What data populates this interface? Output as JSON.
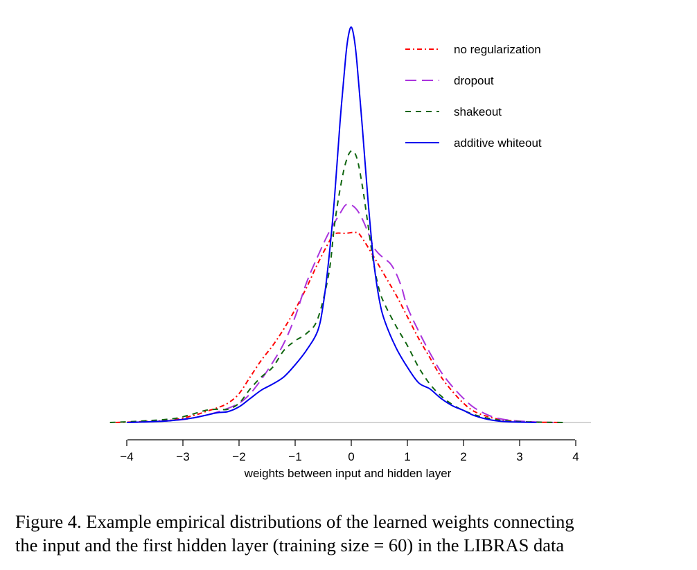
{
  "chart_data": {
    "type": "line",
    "title": "",
    "xlabel": "weights between input and hidden layer",
    "ylabel": "",
    "xlim": [
      -4.3,
      4.3
    ],
    "xticks": [
      -4,
      -3,
      -2,
      -1,
      0,
      1,
      2,
      3,
      4
    ],
    "xtick_labels": [
      "−4",
      "−3",
      "−2",
      "−1",
      "0",
      "1",
      "2",
      "3",
      "4"
    ],
    "y_axis_shown": false,
    "grid": false,
    "legend": "top-right",
    "series": [
      {
        "name": "no regularization",
        "color": "#ff0000",
        "style": "dashdot",
        "points": [
          [
            -4.2,
            0.0
          ],
          [
            -3.8,
            0.003
          ],
          [
            -3.2,
            0.01
          ],
          [
            -2.8,
            0.03
          ],
          [
            -2.6,
            0.045
          ],
          [
            -2.4,
            0.06
          ],
          [
            -2.2,
            0.08
          ],
          [
            -2.0,
            0.12
          ],
          [
            -1.8,
            0.19
          ],
          [
            -1.6,
            0.26
          ],
          [
            -1.4,
            0.32
          ],
          [
            -1.2,
            0.39
          ],
          [
            -1.0,
            0.47
          ],
          [
            -0.8,
            0.56
          ],
          [
            -0.6,
            0.66
          ],
          [
            -0.4,
            0.75
          ],
          [
            -0.3,
            0.785
          ],
          [
            -0.1,
            0.787
          ],
          [
            0.1,
            0.79
          ],
          [
            0.2,
            0.765
          ],
          [
            0.4,
            0.69
          ],
          [
            0.6,
            0.61
          ],
          [
            0.8,
            0.53
          ],
          [
            1.0,
            0.44
          ],
          [
            1.2,
            0.35
          ],
          [
            1.4,
            0.27
          ],
          [
            1.6,
            0.19
          ],
          [
            1.8,
            0.13
          ],
          [
            2.0,
            0.08
          ],
          [
            2.2,
            0.045
          ],
          [
            2.5,
            0.02
          ],
          [
            2.8,
            0.008
          ],
          [
            3.2,
            0.002
          ],
          [
            3.75,
            0.0
          ]
        ]
      },
      {
        "name": "dropout",
        "color": "#aa33dd",
        "style": "longdash",
        "points": [
          [
            -4.0,
            0.0
          ],
          [
            -3.6,
            0.003
          ],
          [
            -3.0,
            0.012
          ],
          [
            -2.6,
            0.03
          ],
          [
            -2.3,
            0.05
          ],
          [
            -2.0,
            0.08
          ],
          [
            -1.8,
            0.12
          ],
          [
            -1.6,
            0.18
          ],
          [
            -1.4,
            0.25
          ],
          [
            -1.2,
            0.33
          ],
          [
            -1.0,
            0.44
          ],
          [
            -0.8,
            0.58
          ],
          [
            -0.6,
            0.69
          ],
          [
            -0.4,
            0.79
          ],
          [
            -0.2,
            0.87
          ],
          [
            -0.1,
            0.905
          ],
          [
            0.0,
            0.905
          ],
          [
            0.1,
            0.885
          ],
          [
            0.2,
            0.845
          ],
          [
            0.3,
            0.79
          ],
          [
            0.4,
            0.73
          ],
          [
            0.5,
            0.7
          ],
          [
            0.6,
            0.68
          ],
          [
            0.7,
            0.66
          ],
          [
            0.8,
            0.62
          ],
          [
            0.9,
            0.56
          ],
          [
            1.0,
            0.48
          ],
          [
            1.2,
            0.38
          ],
          [
            1.4,
            0.29
          ],
          [
            1.6,
            0.21
          ],
          [
            1.8,
            0.15
          ],
          [
            2.0,
            0.1
          ],
          [
            2.2,
            0.06
          ],
          [
            2.5,
            0.025
          ],
          [
            2.8,
            0.01
          ],
          [
            3.2,
            0.003
          ],
          [
            3.6,
            0.0
          ]
        ]
      },
      {
        "name": "shakeout",
        "color": "#116611",
        "style": "dashed",
        "points": [
          [
            -4.3,
            0.0
          ],
          [
            -3.8,
            0.005
          ],
          [
            -3.2,
            0.015
          ],
          [
            -2.9,
            0.03
          ],
          [
            -2.6,
            0.05
          ],
          [
            -2.4,
            0.055
          ],
          [
            -2.2,
            0.055
          ],
          [
            -2.0,
            0.08
          ],
          [
            -1.8,
            0.14
          ],
          [
            -1.6,
            0.19
          ],
          [
            -1.4,
            0.23
          ],
          [
            -1.2,
            0.3
          ],
          [
            -1.0,
            0.34
          ],
          [
            -0.8,
            0.37
          ],
          [
            -0.6,
            0.43
          ],
          [
            -0.4,
            0.62
          ],
          [
            -0.3,
            0.82
          ],
          [
            -0.2,
            0.97
          ],
          [
            -0.1,
            1.08
          ],
          [
            0.0,
            1.13
          ],
          [
            0.1,
            1.1
          ],
          [
            0.2,
            0.98
          ],
          [
            0.3,
            0.82
          ],
          [
            0.4,
            0.66
          ],
          [
            0.5,
            0.55
          ],
          [
            0.6,
            0.49
          ],
          [
            0.8,
            0.4
          ],
          [
            1.0,
            0.32
          ],
          [
            1.2,
            0.23
          ],
          [
            1.4,
            0.16
          ],
          [
            1.6,
            0.11
          ],
          [
            1.8,
            0.075
          ],
          [
            2.0,
            0.05
          ],
          [
            2.3,
            0.025
          ],
          [
            2.7,
            0.008
          ],
          [
            3.2,
            0.002
          ],
          [
            3.8,
            0.0
          ]
        ]
      },
      {
        "name": "additive whiteout",
        "color": "#0000ee",
        "style": "solid",
        "points": [
          [
            -4.0,
            0.0
          ],
          [
            -3.6,
            0.003
          ],
          [
            -3.2,
            0.008
          ],
          [
            -2.8,
            0.02
          ],
          [
            -2.4,
            0.04
          ],
          [
            -2.2,
            0.045
          ],
          [
            -2.0,
            0.065
          ],
          [
            -1.8,
            0.1
          ],
          [
            -1.6,
            0.135
          ],
          [
            -1.4,
            0.16
          ],
          [
            -1.2,
            0.19
          ],
          [
            -1.0,
            0.24
          ],
          [
            -0.8,
            0.3
          ],
          [
            -0.6,
            0.38
          ],
          [
            -0.5,
            0.49
          ],
          [
            -0.4,
            0.68
          ],
          [
            -0.3,
            0.93
          ],
          [
            -0.2,
            1.25
          ],
          [
            -0.1,
            1.52
          ],
          [
            -0.05,
            1.61
          ],
          [
            0.0,
            1.645
          ],
          [
            0.05,
            1.6
          ],
          [
            0.1,
            1.5
          ],
          [
            0.2,
            1.22
          ],
          [
            0.3,
            0.92
          ],
          [
            0.4,
            0.67
          ],
          [
            0.5,
            0.51
          ],
          [
            0.6,
            0.42
          ],
          [
            0.8,
            0.31
          ],
          [
            1.0,
            0.23
          ],
          [
            1.2,
            0.165
          ],
          [
            1.4,
            0.14
          ],
          [
            1.6,
            0.1
          ],
          [
            1.8,
            0.07
          ],
          [
            2.0,
            0.05
          ],
          [
            2.2,
            0.028
          ],
          [
            2.5,
            0.01
          ],
          [
            2.8,
            0.003
          ],
          [
            3.3,
            0.0
          ]
        ]
      }
    ]
  },
  "caption": {
    "line1": "Figure 4.  Example empirical distributions of the learned weights connecting",
    "line2": "the input and the first hidden layer (training size = 60) in the LIBRAS data"
  }
}
